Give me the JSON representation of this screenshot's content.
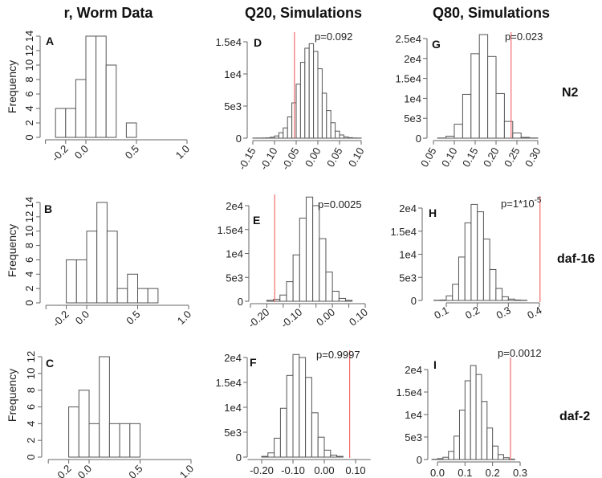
{
  "figure": {
    "column_titles": [
      "r, Worm Data",
      "Q20, Simulations",
      "Q80, Simulations"
    ],
    "row_labels": [
      "N2",
      "daf-16",
      "daf-2"
    ],
    "colors": {
      "bar_fill": "#ffffff",
      "bar_stroke": "#555555",
      "observed_line": "#f36b6b"
    }
  },
  "chart_data": [
    {
      "panel": "A",
      "type": "bar",
      "row": "N2",
      "column": "r, Worm Data",
      "ylabel": "Frequency",
      "bin_start": -0.3,
      "bin_width": 0.1,
      "counts": [
        4,
        4,
        8,
        14,
        14,
        10,
        0,
        2
      ],
      "xticks": [
        -0.4,
        -0.2,
        0.0,
        0.5,
        1.0
      ],
      "xlabels": [
        {
          "at": -0.2,
          "text": "-0.2"
        },
        {
          "at": 0.0,
          "text": "0.0"
        },
        {
          "at": 0.5,
          "text": "0.5"
        },
        {
          "at": 1.0,
          "text": "1.0"
        }
      ],
      "ylabels": [
        {
          "at": 0,
          "text": "0"
        },
        {
          "at": 2,
          "text": "2"
        },
        {
          "at": 4,
          "text": "4"
        },
        {
          "at": 6,
          "text": "6"
        },
        {
          "at": 8,
          "text": "8"
        },
        {
          "at": 10,
          "text": "10"
        },
        {
          "at": 12,
          "text": "12"
        },
        {
          "at": 14,
          "text": "14"
        }
      ],
      "ylim": [
        0,
        14
      ]
    },
    {
      "panel": "B",
      "type": "bar",
      "row": "daf-16",
      "column": "r, Worm Data",
      "ylabel": "Frequency",
      "bin_start": -0.2,
      "bin_width": 0.1,
      "counts": [
        6,
        6,
        10,
        14,
        10,
        2,
        4,
        2,
        2
      ],
      "xticks": [
        -0.4,
        -0.2,
        0.0,
        0.5,
        1.0
      ],
      "xlabels": [
        {
          "at": -0.2,
          "text": "-0.2"
        },
        {
          "at": 0.0,
          "text": "0.0"
        },
        {
          "at": 0.5,
          "text": "0.5"
        },
        {
          "at": 1.0,
          "text": "1.0"
        }
      ],
      "ylabels": [
        {
          "at": 0,
          "text": "0"
        },
        {
          "at": 2,
          "text": "2"
        },
        {
          "at": 4,
          "text": "4"
        },
        {
          "at": 6,
          "text": "6"
        },
        {
          "at": 8,
          "text": "8"
        },
        {
          "at": 10,
          "text": "10"
        },
        {
          "at": 12,
          "text": "12"
        },
        {
          "at": 14,
          "text": "14"
        }
      ],
      "ylim": [
        0,
        14
      ]
    },
    {
      "panel": "C",
      "type": "bar",
      "row": "daf-2",
      "column": "r, Worm Data",
      "ylabel": "Frequency",
      "bin_start": -0.2,
      "bin_width": 0.1,
      "counts": [
        6,
        8,
        4,
        12,
        4,
        4,
        4
      ],
      "xticks": [
        -0.4,
        -0.2,
        0.0,
        0.5,
        1.0
      ],
      "xlabels": [
        {
          "at": -0.2,
          "text": "-0.2"
        },
        {
          "at": 0.0,
          "text": "0.0"
        },
        {
          "at": 0.5,
          "text": "0.5"
        },
        {
          "at": 1.0,
          "text": "1.0"
        }
      ],
      "ylabels": [
        {
          "at": 0,
          "text": "0"
        },
        {
          "at": 2,
          "text": "2"
        },
        {
          "at": 4,
          "text": "4"
        },
        {
          "at": 6,
          "text": "6"
        },
        {
          "at": 8,
          "text": "8"
        },
        {
          "at": 10,
          "text": "10"
        },
        {
          "at": 12,
          "text": "12"
        }
      ],
      "ylim": [
        0,
        12
      ]
    },
    {
      "panel": "D",
      "type": "bar",
      "row": "N2",
      "column": "Q20, Simulations",
      "bin_start": -0.15,
      "bin_width": 0.01,
      "counts": [
        20,
        20,
        30,
        50,
        150,
        350,
        850,
        1600,
        3300,
        5500,
        8400,
        11800,
        14000,
        14700,
        13500,
        10800,
        7000,
        4300,
        2400,
        1100,
        500,
        200,
        80,
        30,
        20
      ],
      "observed": -0.054,
      "p_label": "p=0.092",
      "xticks": [
        -0.15,
        -0.1,
        -0.05,
        0.0,
        0.05,
        0.1
      ],
      "xlabels": [
        {
          "at": -0.15,
          "text": "-0.15"
        },
        {
          "at": -0.1,
          "text": "-0.10"
        },
        {
          "at": -0.05,
          "text": "-0.05"
        },
        {
          "at": 0.0,
          "text": "0.00"
        },
        {
          "at": 0.05,
          "text": "0.05"
        },
        {
          "at": 0.1,
          "text": "0.10"
        }
      ],
      "ylabels": [
        {
          "at": 0,
          "text": "0"
        },
        {
          "at": 5000,
          "text": "5e3"
        },
        {
          "at": 10000,
          "text": "1e4"
        },
        {
          "at": 15000,
          "text": "1.5e4"
        }
      ],
      "ylim": [
        0,
        15000
      ]
    },
    {
      "panel": "E",
      "type": "bar",
      "row": "daf-16",
      "column": "Q20, Simulations",
      "bin_start": -0.2,
      "bin_width": 0.02,
      "counts": [
        200,
        400,
        1300,
        4100,
        9700,
        17400,
        21800,
        20000,
        13100,
        6100,
        2100,
        600,
        200
      ],
      "observed": -0.176,
      "p_label": "p=0.0025",
      "xticks": [
        -0.25,
        -0.2,
        -0.15,
        -0.1,
        -0.05,
        0.0,
        0.05,
        0.1
      ],
      "xlabels": [
        {
          "at": -0.2,
          "text": "-0.20"
        },
        {
          "at": -0.1,
          "text": "-0.10"
        },
        {
          "at": 0.0,
          "text": "0.00"
        },
        {
          "at": 0.1,
          "text": "0.10"
        }
      ],
      "ylabels": [
        {
          "at": 0,
          "text": "0"
        },
        {
          "at": 5000,
          "text": "5e3"
        },
        {
          "at": 10000,
          "text": "1e4"
        },
        {
          "at": 15000,
          "text": "1.5e4"
        },
        {
          "at": 20000,
          "text": "2e4"
        }
      ],
      "ylim": [
        0,
        20000
      ]
    },
    {
      "panel": "F",
      "type": "bar",
      "row": "daf-2",
      "column": "Q20, Simulations",
      "bin_start": -0.2,
      "bin_width": 0.02,
      "counts": [
        150,
        850,
        3800,
        9800,
        16400,
        20600,
        20000,
        16000,
        8900,
        4000,
        1400,
        400,
        150
      ],
      "observed": 0.081,
      "p_label": "p=0.9997",
      "xticks": [
        -0.2,
        -0.1,
        0.0,
        0.1
      ],
      "xlabels": [
        {
          "at": -0.2,
          "text": "-0.20"
        },
        {
          "at": -0.1,
          "text": "-0.10"
        },
        {
          "at": 0.0,
          "text": "0.00"
        },
        {
          "at": 0.1,
          "text": "0.10"
        }
      ],
      "ylabels": [
        {
          "at": 0,
          "text": "0"
        },
        {
          "at": 5000,
          "text": "5e3"
        },
        {
          "at": 10000,
          "text": "1e4"
        },
        {
          "at": 15000,
          "text": "1.5e4"
        },
        {
          "at": 20000,
          "text": "2e4"
        }
      ],
      "ylim": [
        0,
        20000
      ]
    },
    {
      "panel": "G",
      "type": "bar",
      "row": "N2",
      "column": "Q80, Simulations",
      "bin_start": 0.06,
      "bin_width": 0.02,
      "counts": [
        50,
        500,
        3500,
        11000,
        21200,
        26000,
        20500,
        11200,
        4200,
        1300,
        200,
        50
      ],
      "observed": 0.236,
      "p_label": "p=0.023",
      "xticks": [
        0.05,
        0.1,
        0.15,
        0.2,
        0.25,
        0.3
      ],
      "xlabels": [
        {
          "at": 0.05,
          "text": "0.05"
        },
        {
          "at": 0.1,
          "text": "0.10"
        },
        {
          "at": 0.15,
          "text": "0.15"
        },
        {
          "at": 0.2,
          "text": "0.20"
        },
        {
          "at": 0.25,
          "text": "0.25"
        },
        {
          "at": 0.3,
          "text": "0.30"
        }
      ],
      "ylabels": [
        {
          "at": 0,
          "text": "0"
        },
        {
          "at": 5000,
          "text": "5e3"
        },
        {
          "at": 10000,
          "text": "1e4"
        },
        {
          "at": 15000,
          "text": "1.5e4"
        },
        {
          "at": 20000,
          "text": "2e4"
        },
        {
          "at": 25000,
          "text": "2.5e4"
        }
      ],
      "ylim": [
        0,
        25000
      ]
    },
    {
      "panel": "H",
      "type": "bar",
      "row": "daf-16",
      "column": "Q80, Simulations",
      "bin_start": 0.06,
      "bin_width": 0.02,
      "counts": [
        50,
        100,
        1000,
        3500,
        9400,
        16800,
        20800,
        19200,
        13300,
        6700,
        2600,
        800,
        300,
        100,
        50
      ],
      "observed": 0.402,
      "p_label": "p=1*10",
      "p_exponent": "-5",
      "xticks": [
        0.1,
        0.2,
        0.3,
        0.4
      ],
      "xlabels": [
        {
          "at": 0.1,
          "text": "0.1"
        },
        {
          "at": 0.2,
          "text": "0.2"
        },
        {
          "at": 0.3,
          "text": "0.3"
        },
        {
          "at": 0.4,
          "text": "0.4"
        }
      ],
      "ylabels": [
        {
          "at": 0,
          "text": "0"
        },
        {
          "at": 5000,
          "text": "5e3"
        },
        {
          "at": 10000,
          "text": "1e4"
        },
        {
          "at": 15000,
          "text": "1.5e4"
        },
        {
          "at": 20000,
          "text": "2e4"
        }
      ],
      "ylim": [
        0,
        20000
      ]
    },
    {
      "panel": "I",
      "type": "bar",
      "row": "daf-2",
      "column": "Q80, Simulations",
      "bin_start": -0.02,
      "bin_width": 0.02,
      "counts": [
        50,
        200,
        500,
        1800,
        5200,
        11000,
        17500,
        20900,
        18900,
        12900,
        7000,
        3000,
        1100,
        400,
        100
      ],
      "observed": 0.265,
      "p_label": "p=0.0012",
      "xticks": [
        0.0,
        0.1,
        0.2,
        0.3
      ],
      "xlabels": [
        {
          "at": 0.0,
          "text": "0.0"
        },
        {
          "at": 0.1,
          "text": "0.1"
        },
        {
          "at": 0.2,
          "text": "0.2"
        },
        {
          "at": 0.3,
          "text": "0.3"
        }
      ],
      "ylabels": [
        {
          "at": 0,
          "text": "0"
        },
        {
          "at": 5000,
          "text": "5e3"
        },
        {
          "at": 10000,
          "text": "1e4"
        },
        {
          "at": 15000,
          "text": "1.5e4"
        },
        {
          "at": 20000,
          "text": "2e4"
        }
      ],
      "ylim": [
        0,
        20000
      ]
    }
  ]
}
